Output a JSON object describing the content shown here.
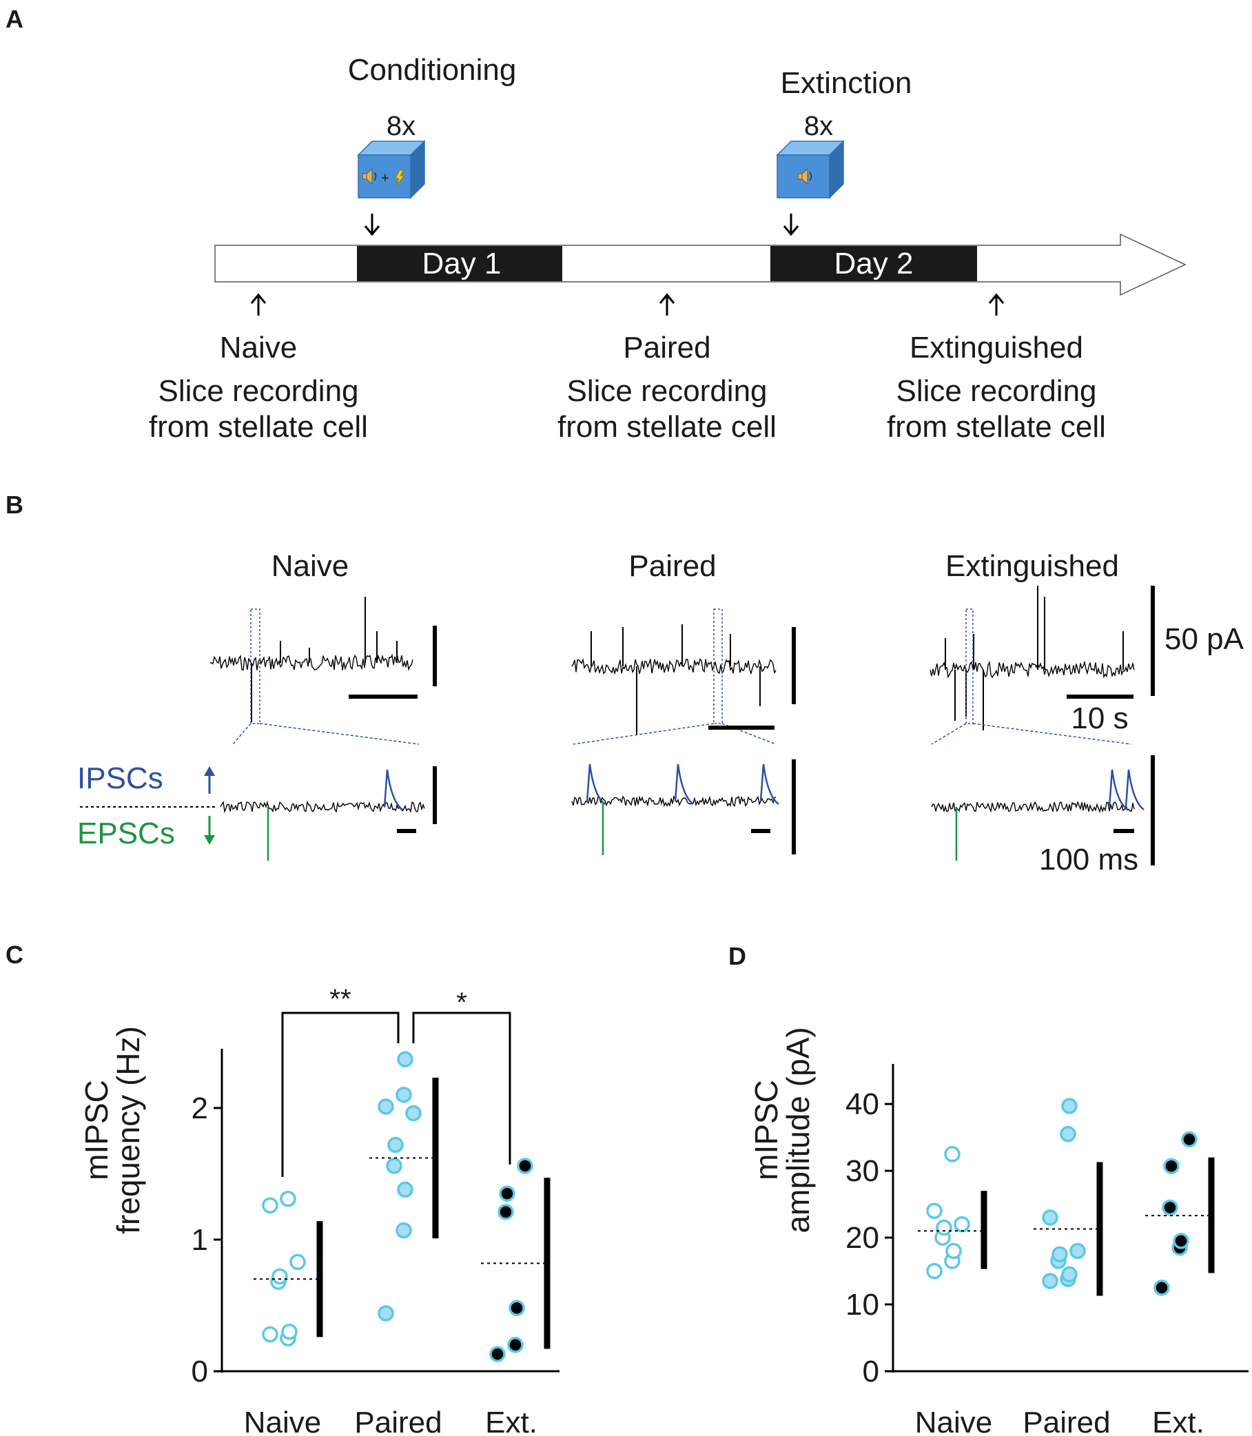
{
  "panel_labels": {
    "a": "A",
    "b": "B",
    "c": "C",
    "d": "D"
  },
  "panel_a": {
    "conditioning_title": "Conditioning",
    "extinction_title": "Extinction",
    "repeat_label_1": "8x",
    "repeat_label_2": "8x",
    "day1_label": "Day 1",
    "day2_label": "Day 2",
    "groups": [
      {
        "name": "Naive",
        "line1": "Slice recording",
        "line2": "from stellate cell"
      },
      {
        "name": "Paired",
        "line1": "Slice recording",
        "line2": "from stellate cell"
      },
      {
        "name": "Extinguished",
        "line1": "Slice recording",
        "line2": "from stellate cell"
      }
    ],
    "icons": {
      "box_color": "#4a90d9",
      "speaker": "speaker-icon",
      "shock": "lightning-icon",
      "plus": "+"
    }
  },
  "panel_b": {
    "titles": [
      "Naive",
      "Paired",
      "Extinguished"
    ],
    "ipsc_label": "IPSCs",
    "epsc_label": "EPSCs",
    "scale_current": "50 pA",
    "scale_time_long": "10 s",
    "scale_time_short": "100 ms",
    "colors": {
      "ipsc": "#2e4fa3",
      "epsc": "#1a9641",
      "trace": "#000000",
      "zoom_box": "#2e4fa3"
    }
  },
  "chart_data": [
    {
      "panel": "C",
      "type": "scatter",
      "ylabel_line1": "mIPSC",
      "ylabel_line2": "frequency (Hz)",
      "xlabel": "",
      "categories": [
        "Naive",
        "Paired",
        "Ext."
      ],
      "ylim": [
        0,
        2.45
      ],
      "yticks": [
        0,
        1,
        2
      ],
      "ytick_labels": [
        "0",
        "1",
        "2"
      ],
      "point_color": "#5bc8e8",
      "series": [
        {
          "values": [
            0.28,
            0.25,
            0.3,
            0.68,
            0.72,
            0.83,
            1.26,
            1.31
          ],
          "style": "open"
        },
        {
          "values": [
            0.44,
            1.07,
            1.38,
            1.56,
            1.72,
            1.96,
            2.01,
            2.1,
            2.37
          ],
          "style": "filled-light"
        },
        {
          "values": [
            0.13,
            0.2,
            0.48,
            1.21,
            1.35,
            1.56
          ],
          "style": "black-center"
        }
      ],
      "means": [
        0.7,
        1.62,
        0.82
      ],
      "sd_ranges": [
        [
          0.26,
          1.14
        ],
        [
          1.01,
          2.23
        ],
        [
          0.17,
          1.47
        ]
      ],
      "significance": [
        {
          "from": "Naive",
          "to": "Paired",
          "label": "**"
        },
        {
          "from": "Paired",
          "to": "Ext.",
          "label": "*"
        }
      ]
    },
    {
      "panel": "D",
      "type": "scatter",
      "ylabel_line1": "mIPSC",
      "ylabel_line2": "amplitude (pA)",
      "xlabel": "",
      "categories": [
        "Naive",
        "Paired",
        "Ext."
      ],
      "ylim": [
        0,
        46
      ],
      "yticks": [
        0,
        10,
        20,
        30,
        40
      ],
      "ytick_labels": [
        "0",
        "10",
        "20",
        "30",
        "40"
      ],
      "point_color": "#5bc8e8",
      "series": [
        {
          "values": [
            15.0,
            16.5,
            18.0,
            20.0,
            21.5,
            22.0,
            24.0,
            32.5
          ],
          "style": "open"
        },
        {
          "values": [
            13.5,
            13.8,
            14.5,
            16.5,
            17.5,
            18.0,
            23.0,
            35.5,
            39.7
          ],
          "style": "filled-light"
        },
        {
          "values": [
            12.5,
            18.5,
            19.5,
            24.5,
            30.7,
            34.7
          ],
          "style": "black-center"
        }
      ],
      "means": [
        21.0,
        21.3,
        23.3
      ],
      "sd_ranges": [
        [
          15.3,
          27.0
        ],
        [
          11.3,
          31.3
        ],
        [
          14.7,
          32.0
        ]
      ]
    }
  ]
}
